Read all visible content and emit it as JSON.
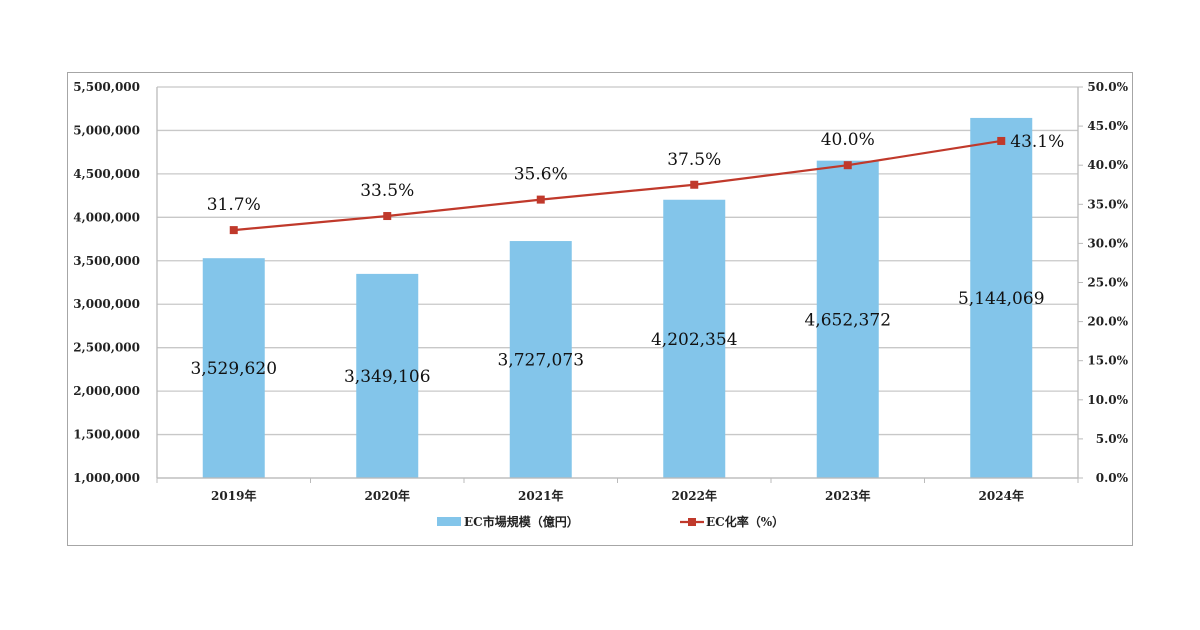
{
  "chart_data": {
    "type": "bar",
    "title": "",
    "categories": [
      "2019年",
      "2020年",
      "2021年",
      "2022年",
      "2023年",
      "2024年"
    ],
    "series": [
      {
        "name": "EC市場規模（億円）",
        "type": "bar",
        "axis": "left",
        "color": "#83c5ea",
        "values": [
          3529620,
          3349106,
          3727073,
          4202354,
          4652372,
          5144069
        ],
        "labels": [
          "3,529,620",
          "3,349,106",
          "3,727,073",
          "4,202,354",
          "4,652,372",
          "5,144,069"
        ]
      },
      {
        "name": "EC化率（%）",
        "type": "line",
        "axis": "right",
        "color": "#c0392b",
        "values": [
          31.7,
          33.5,
          35.6,
          37.5,
          40.0,
          43.1
        ],
        "labels": [
          "31.7%",
          "33.5%",
          "35.6%",
          "37.5%",
          "40.0%",
          "43.1%"
        ]
      }
    ],
    "y_left": {
      "range": [
        1000000,
        5500000
      ],
      "ticks": [
        "1,000,000",
        "1,500,000",
        "2,000,000",
        "2,500,000",
        "3,000,000",
        "3,500,000",
        "4,000,000",
        "4,500,000",
        "5,000,000",
        "5,500,000"
      ]
    },
    "y_right": {
      "range": [
        0,
        50
      ],
      "ticks": [
        "0.0%",
        "5.0%",
        "10.0%",
        "15.0%",
        "20.0%",
        "25.0%",
        "30.0%",
        "35.0%",
        "40.0%",
        "45.0%",
        "50.0%"
      ]
    },
    "grid": true,
    "legend_position": "bottom"
  }
}
